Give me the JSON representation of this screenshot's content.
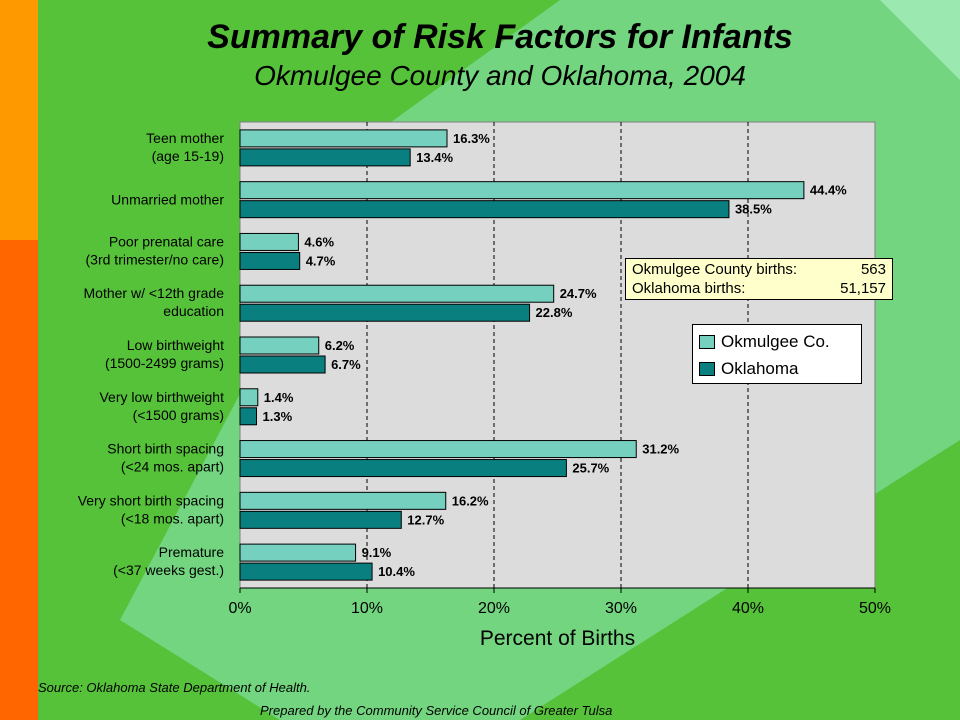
{
  "title": "Summary of Risk Factors for Infants",
  "subtitle": "Okmulgee County and Oklahoma, 2004",
  "colors": {
    "okmulgee": "#76d0c0",
    "oklahoma": "#0a7f7f",
    "plot_bg": "#dcdcdc",
    "page_green": "#56c23a",
    "left_orange": "#ff9900",
    "left_red_orange": "#ff6600",
    "light_green": "#80dba0"
  },
  "info_box": {
    "line1_label": "Okmulgee County births:",
    "line1_value": "563",
    "line2_label": "Oklahoma births:",
    "line2_value": "51,157"
  },
  "legend": {
    "placement": "right-middle",
    "items": [
      "Okmulgee Co.",
      "Oklahoma"
    ]
  },
  "source": "Source:  Oklahoma State Department of Health.",
  "prepared_by": "Prepared by the Community Service Council of Greater Tulsa",
  "chart_data": {
    "type": "bar",
    "orientation": "horizontal",
    "categories": [
      [
        "Teen mother",
        "(age 15-19)"
      ],
      [
        "Unmarried mother"
      ],
      [
        "Poor prenatal care",
        "(3rd trimester/no care)"
      ],
      [
        "Mother w/ <12th grade",
        "education"
      ],
      [
        "Low birthweight",
        "(1500-2499 grams)"
      ],
      [
        "Very low birthweight",
        "(<1500 grams)"
      ],
      [
        "Short birth spacing",
        "(<24 mos. apart)"
      ],
      [
        "Very short birth spacing",
        "(<18 mos. apart)"
      ],
      [
        "Premature",
        "(<37 weeks gest.)"
      ]
    ],
    "series": [
      {
        "name": "Okmulgee Co.",
        "values": [
          16.3,
          44.4,
          4.6,
          24.7,
          6.2,
          1.4,
          31.2,
          16.2,
          9.1
        ],
        "labels": [
          "16.3%",
          "44.4%",
          "4.6%",
          "24.7%",
          "6.2%",
          "1.4%",
          "31.2%",
          "16.2%",
          "9.1%"
        ]
      },
      {
        "name": "Oklahoma",
        "values": [
          13.4,
          38.5,
          4.7,
          22.8,
          6.7,
          1.3,
          25.7,
          12.7,
          10.4
        ],
        "labels": [
          "13.4%",
          "38.5%",
          "4.7%",
          "22.8%",
          "6.7%",
          "1.3%",
          "25.7%",
          "12.7%",
          "10.4%"
        ]
      }
    ],
    "xlabel": "Percent of Births",
    "xlim": [
      0,
      50
    ],
    "xticks": [
      "0%",
      "10%",
      "20%",
      "30%",
      "40%",
      "50%"
    ],
    "grid": "vertical dashed"
  }
}
